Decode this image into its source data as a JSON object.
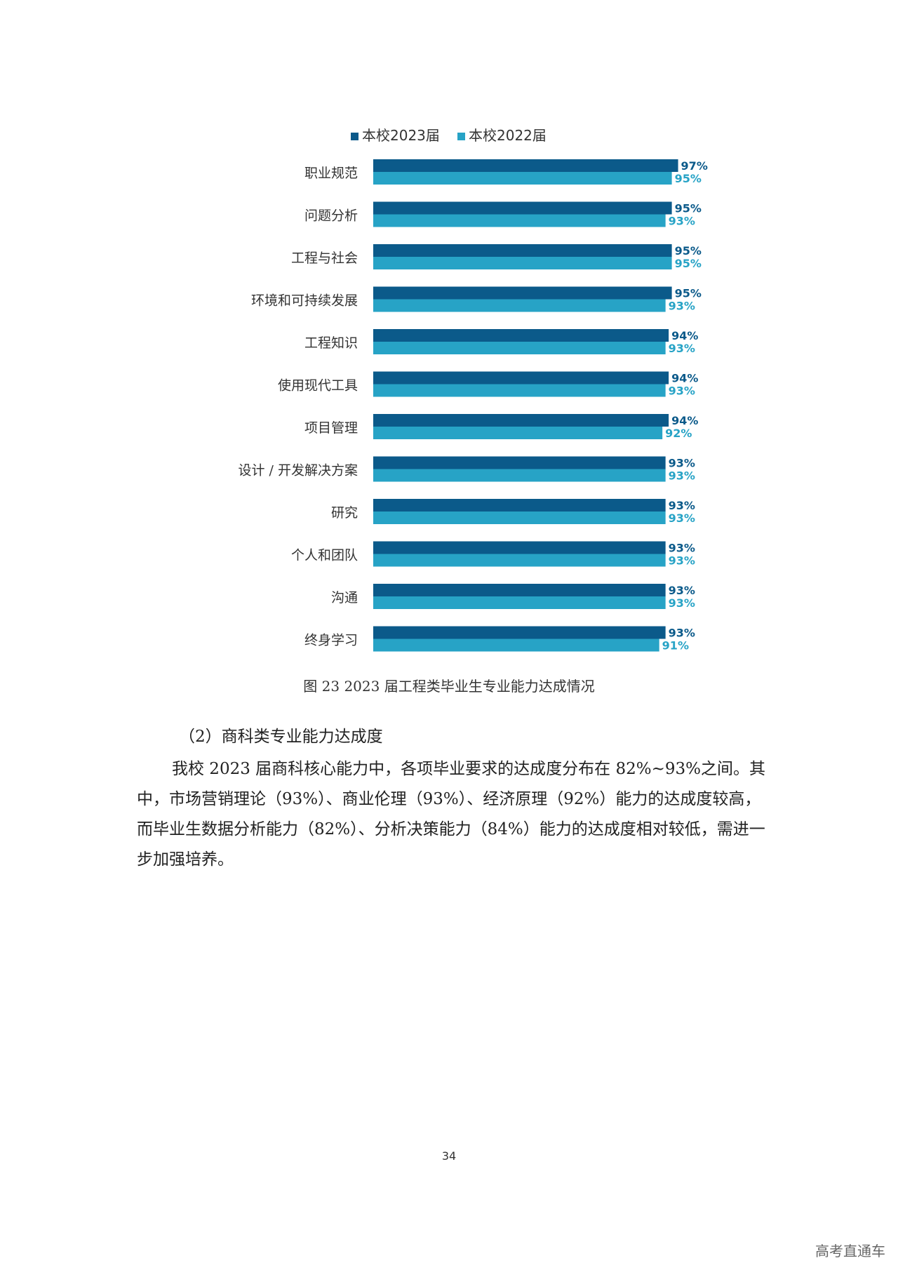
{
  "chart_data": {
    "type": "bar",
    "orientation": "horizontal",
    "categories": [
      "职业规范",
      "问题分析",
      "工程与社会",
      "环境和可持续发展",
      "工程知识",
      "使用现代工具",
      "项目管理",
      "设计 / 开发解决方案",
      "研究",
      "个人和团队",
      "沟通",
      "终身学习"
    ],
    "series": [
      {
        "name": "本校2023届",
        "color": "#0b5a8a",
        "values": [
          97,
          95,
          95,
          95,
          94,
          94,
          94,
          93,
          93,
          93,
          93,
          93
        ],
        "labels": [
          "97%",
          "95%",
          "95%",
          "95%",
          "94%",
          "94%",
          "94%",
          "93%",
          "93%",
          "93%",
          "93%",
          "93%"
        ]
      },
      {
        "name": "本校2022届",
        "color": "#27a3c6",
        "values": [
          95,
          93,
          95,
          93,
          93,
          93,
          92,
          93,
          93,
          93,
          93,
          91
        ],
        "labels": [
          "95%",
          "93%",
          "95%",
          "93%",
          "93%",
          "93%",
          "92%",
          "93%",
          "93%",
          "93%",
          "93%",
          "91%"
        ]
      }
    ],
    "legend_position": "top",
    "grid": false,
    "xlim": [
      0,
      100
    ]
  },
  "caption": "图 23  2023 届工程类毕业生专业能力达成情况",
  "section_heading": "（2）商科类专业能力达成度",
  "paragraph": "我校 2023 届商科核心能力中，各项毕业要求的达成度分布在 82%~93%之间。其中，市场营销理论（93%）、商业伦理（93%）、经济原理（92%）能力的达成度较高，而毕业生数据分析能力（82%）、分析决策能力（84%）能力的达成度相对较低，需进一步加强培养。",
  "page_number": "34",
  "watermark": "高考直通车"
}
